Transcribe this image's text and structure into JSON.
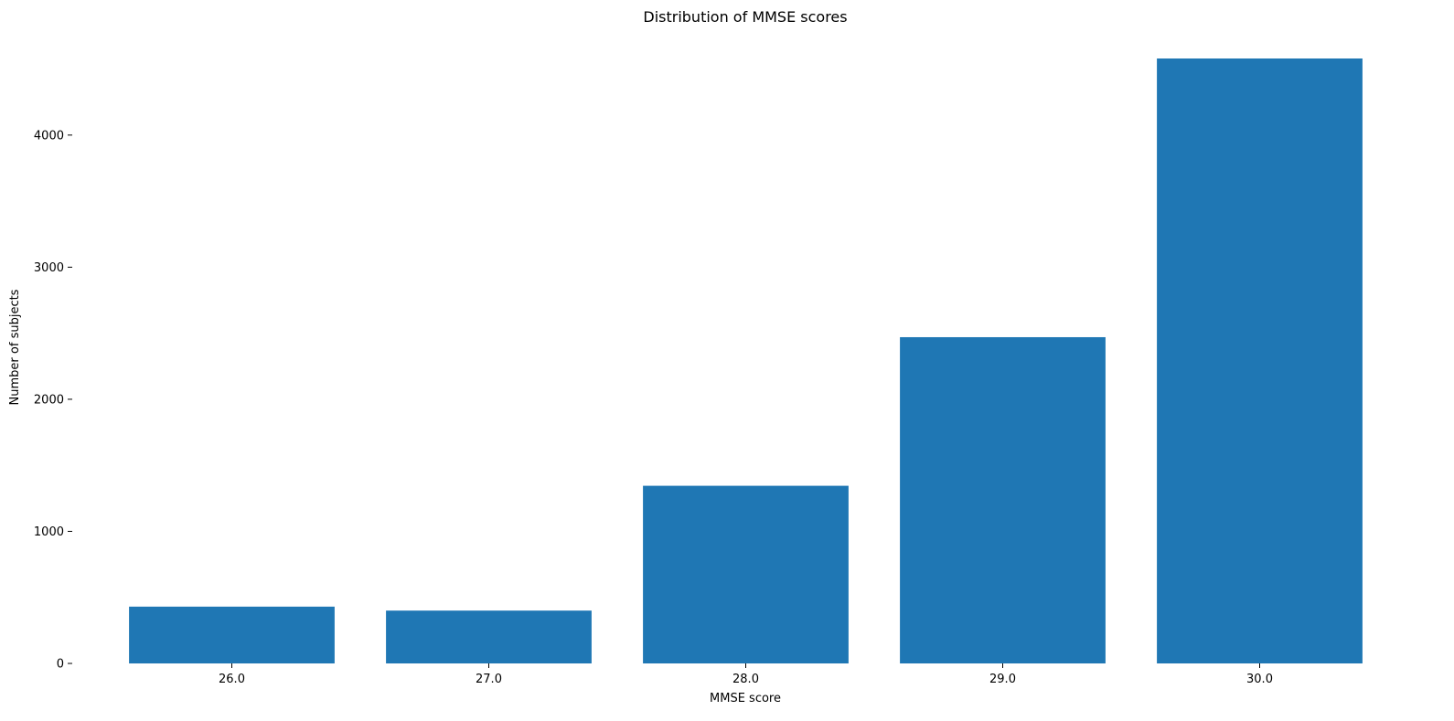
{
  "chart_data": {
    "type": "bar",
    "title": "Distribution of MMSE scores",
    "xlabel": "MMSE score",
    "ylabel": "Number of subjects",
    "categories": [
      "26.0",
      "27.0",
      "28.0",
      "29.0",
      "30.0"
    ],
    "values": [
      430,
      400,
      1345,
      2470,
      4580
    ],
    "ylim": [
      0,
      4580
    ],
    "yticks": [
      0,
      1000,
      2000,
      3000,
      4000
    ],
    "ytick_labels": [
      "0",
      "1000",
      "2000",
      "3000",
      "4000"
    ],
    "grid": false,
    "bar_color": "#1f77b4"
  }
}
